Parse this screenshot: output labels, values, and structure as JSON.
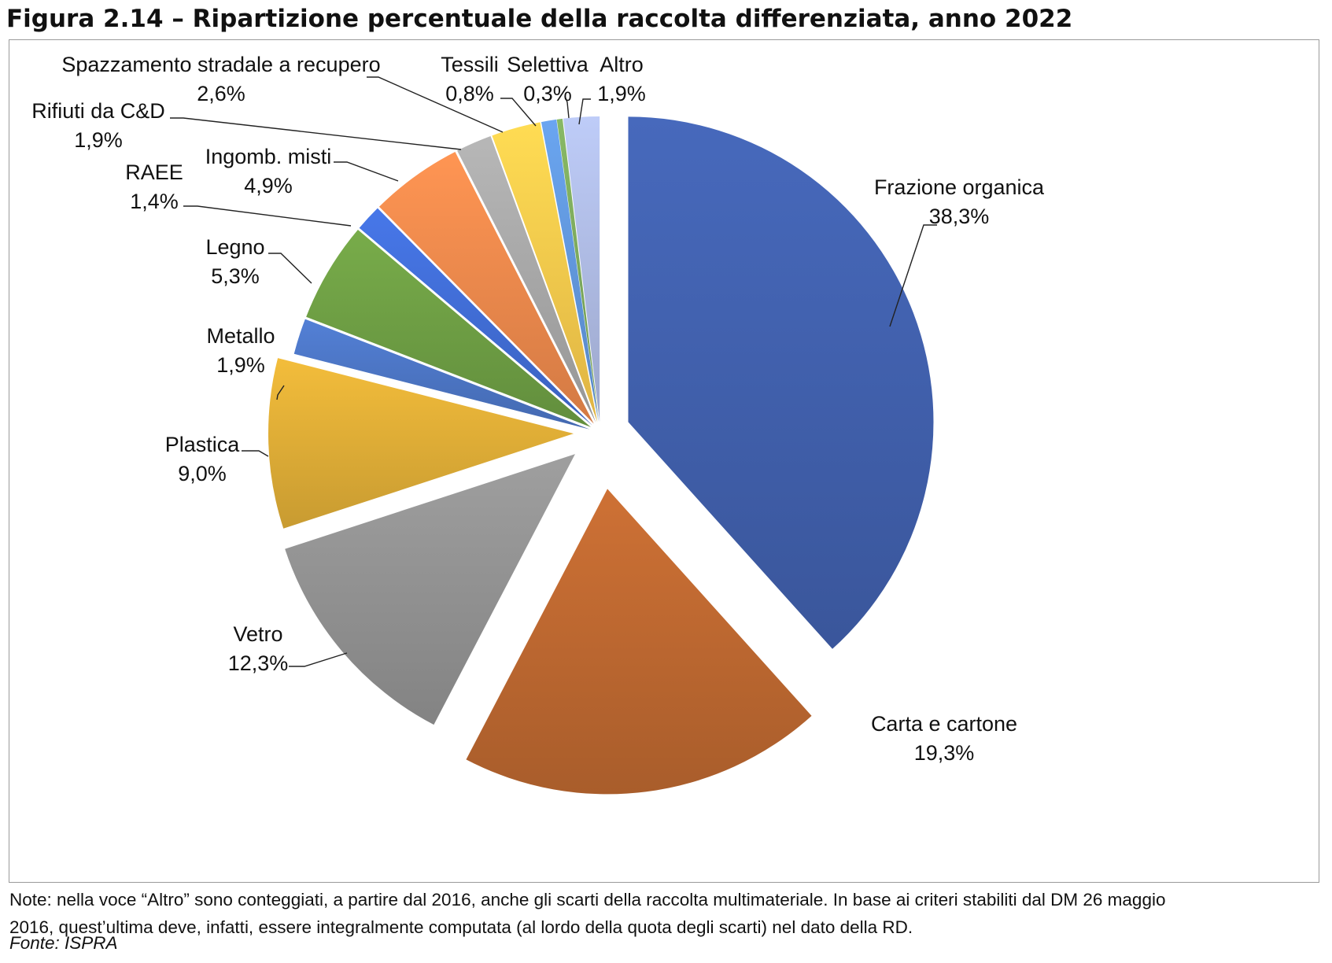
{
  "figure": {
    "title": "Figura 2.14 – Ripartizione percentuale della raccolta differenziata, anno 2022",
    "note_lines": [
      "Note: nella voce “Altro” sono conteggiati, a partire dal 2016, anche gli scarti della raccolta multimateriale. In base ai criteri stabiliti dal DM 26 maggio",
      "2016, quest’ultima deve, infatti, essere integralmente computata (al lordo della quota degli scarti) nel dato della RD."
    ],
    "source": "Fonte: ISPRA"
  },
  "chart_data": {
    "type": "pie",
    "exploded": true,
    "start_angle_deg": 0,
    "direction": "clockwise",
    "labels": [
      "Frazione organica",
      "Carta e cartone",
      "Vetro",
      "Plastica",
      "Metallo",
      "Legno",
      "RAEE",
      "Ingomb. misti",
      "Rifiuti da C&D",
      "Spazzamento stradale a recupero",
      "Tessili",
      "Selettiva",
      "Altro"
    ],
    "values": [
      38.3,
      19.3,
      12.3,
      9.0,
      1.9,
      5.3,
      1.4,
      4.9,
      1.9,
      2.6,
      0.8,
      0.3,
      1.9
    ],
    "value_labels": [
      "38,3%",
      "19,3%",
      "12,3%",
      "9,0%",
      "1,9%",
      "5,3%",
      "1,4%",
      "4,9%",
      "1,9%",
      "2,6%",
      "0,8%",
      "0,3%",
      "1,9%"
    ],
    "colors": [
      "#3f5ea8",
      "#b8652f",
      "#8e8e8e",
      "#d9a935",
      "#4a72bf",
      "#6b9a42",
      "#3f6ad0",
      "#e5854a",
      "#a3a3a3",
      "#f2c44a",
      "#5f93d6",
      "#79a55a",
      "#aab6dd"
    ],
    "legend": "none",
    "units": "%"
  }
}
